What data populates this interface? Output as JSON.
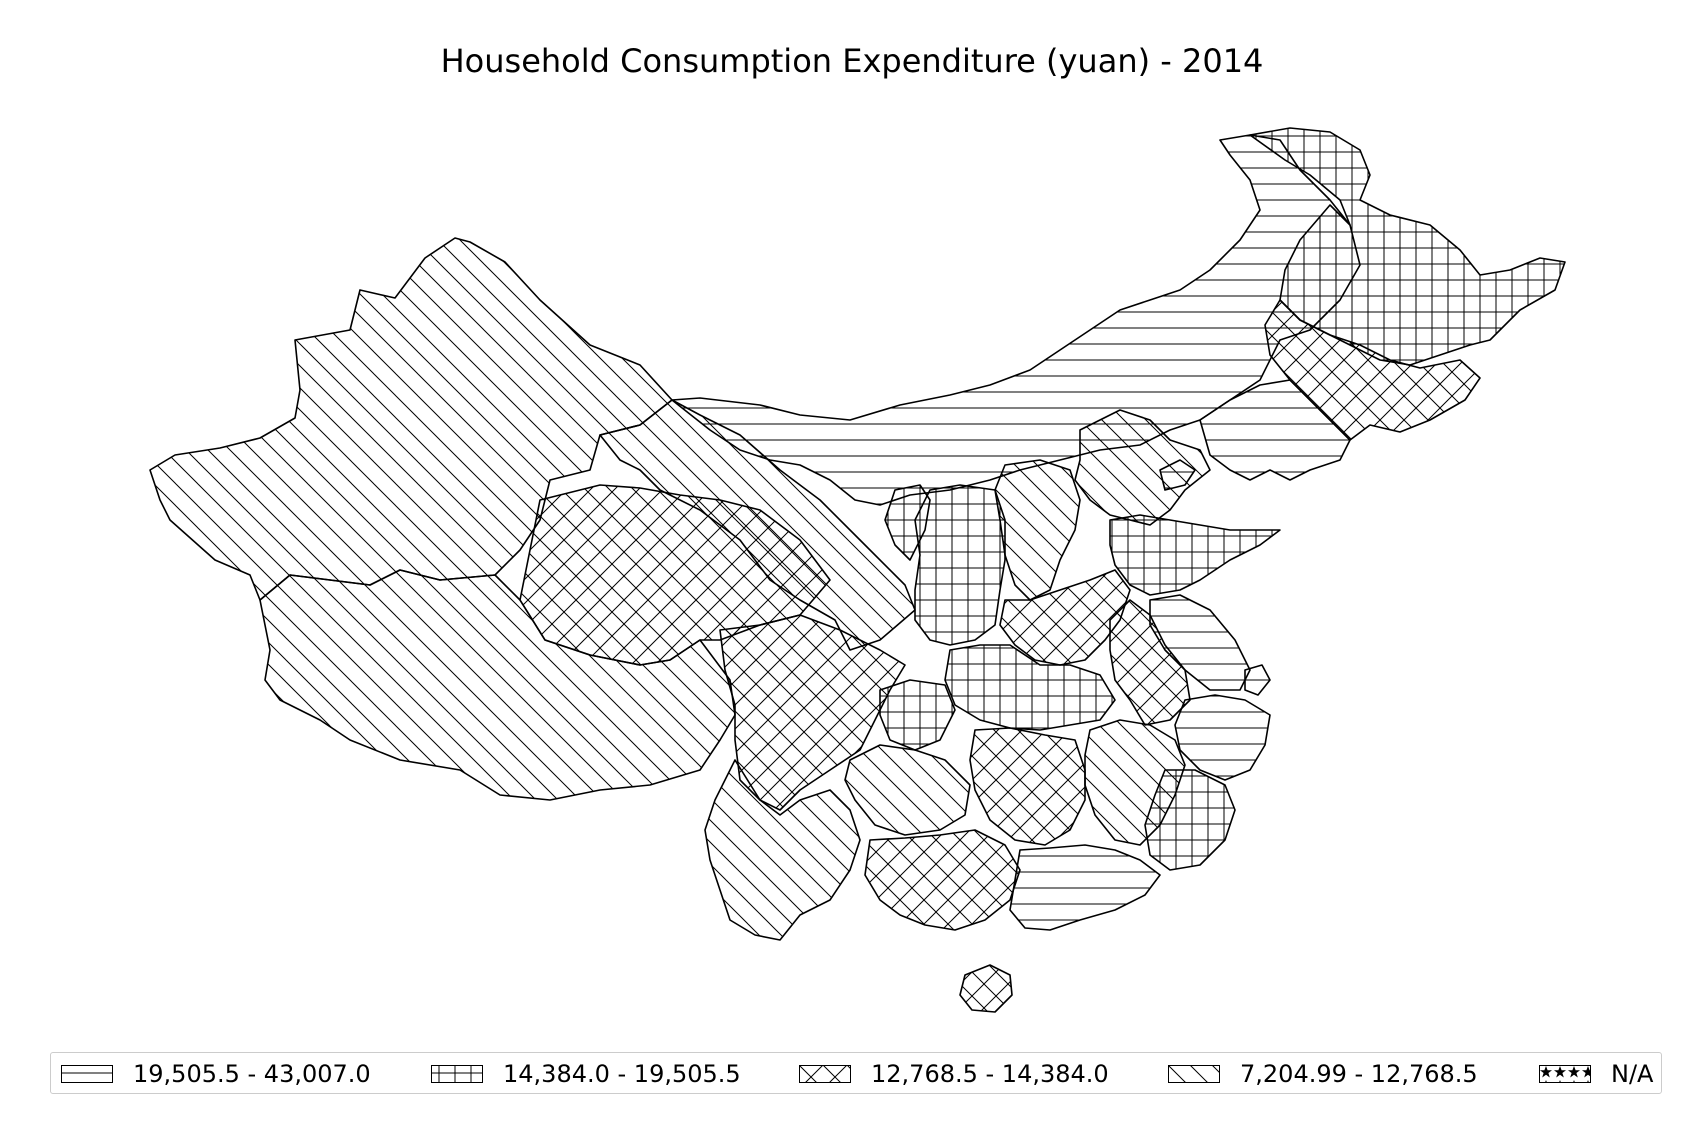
{
  "map": {
    "title": "Household Consumption Expenditure (yuan) - 2014"
  },
  "legend": {
    "items": [
      {
        "label": "19,505.5 - 43,007.0",
        "pattern": "horizontal-hatch"
      },
      {
        "label": "14,384.0 - 19,505.5",
        "pattern": "grid-hatch"
      },
      {
        "label": "12,768.5 - 14,384.0",
        "pattern": "diagonal-cross-hatch"
      },
      {
        "label": "7,204.99 - 12,768.5",
        "pattern": "diagonal-hatch"
      },
      {
        "label": "N/A",
        "pattern": "star-hatch"
      }
    ]
  },
  "colors": {
    "stroke": "#000000",
    "background": "#ffffff",
    "legend_border": "#cccccc"
  }
}
